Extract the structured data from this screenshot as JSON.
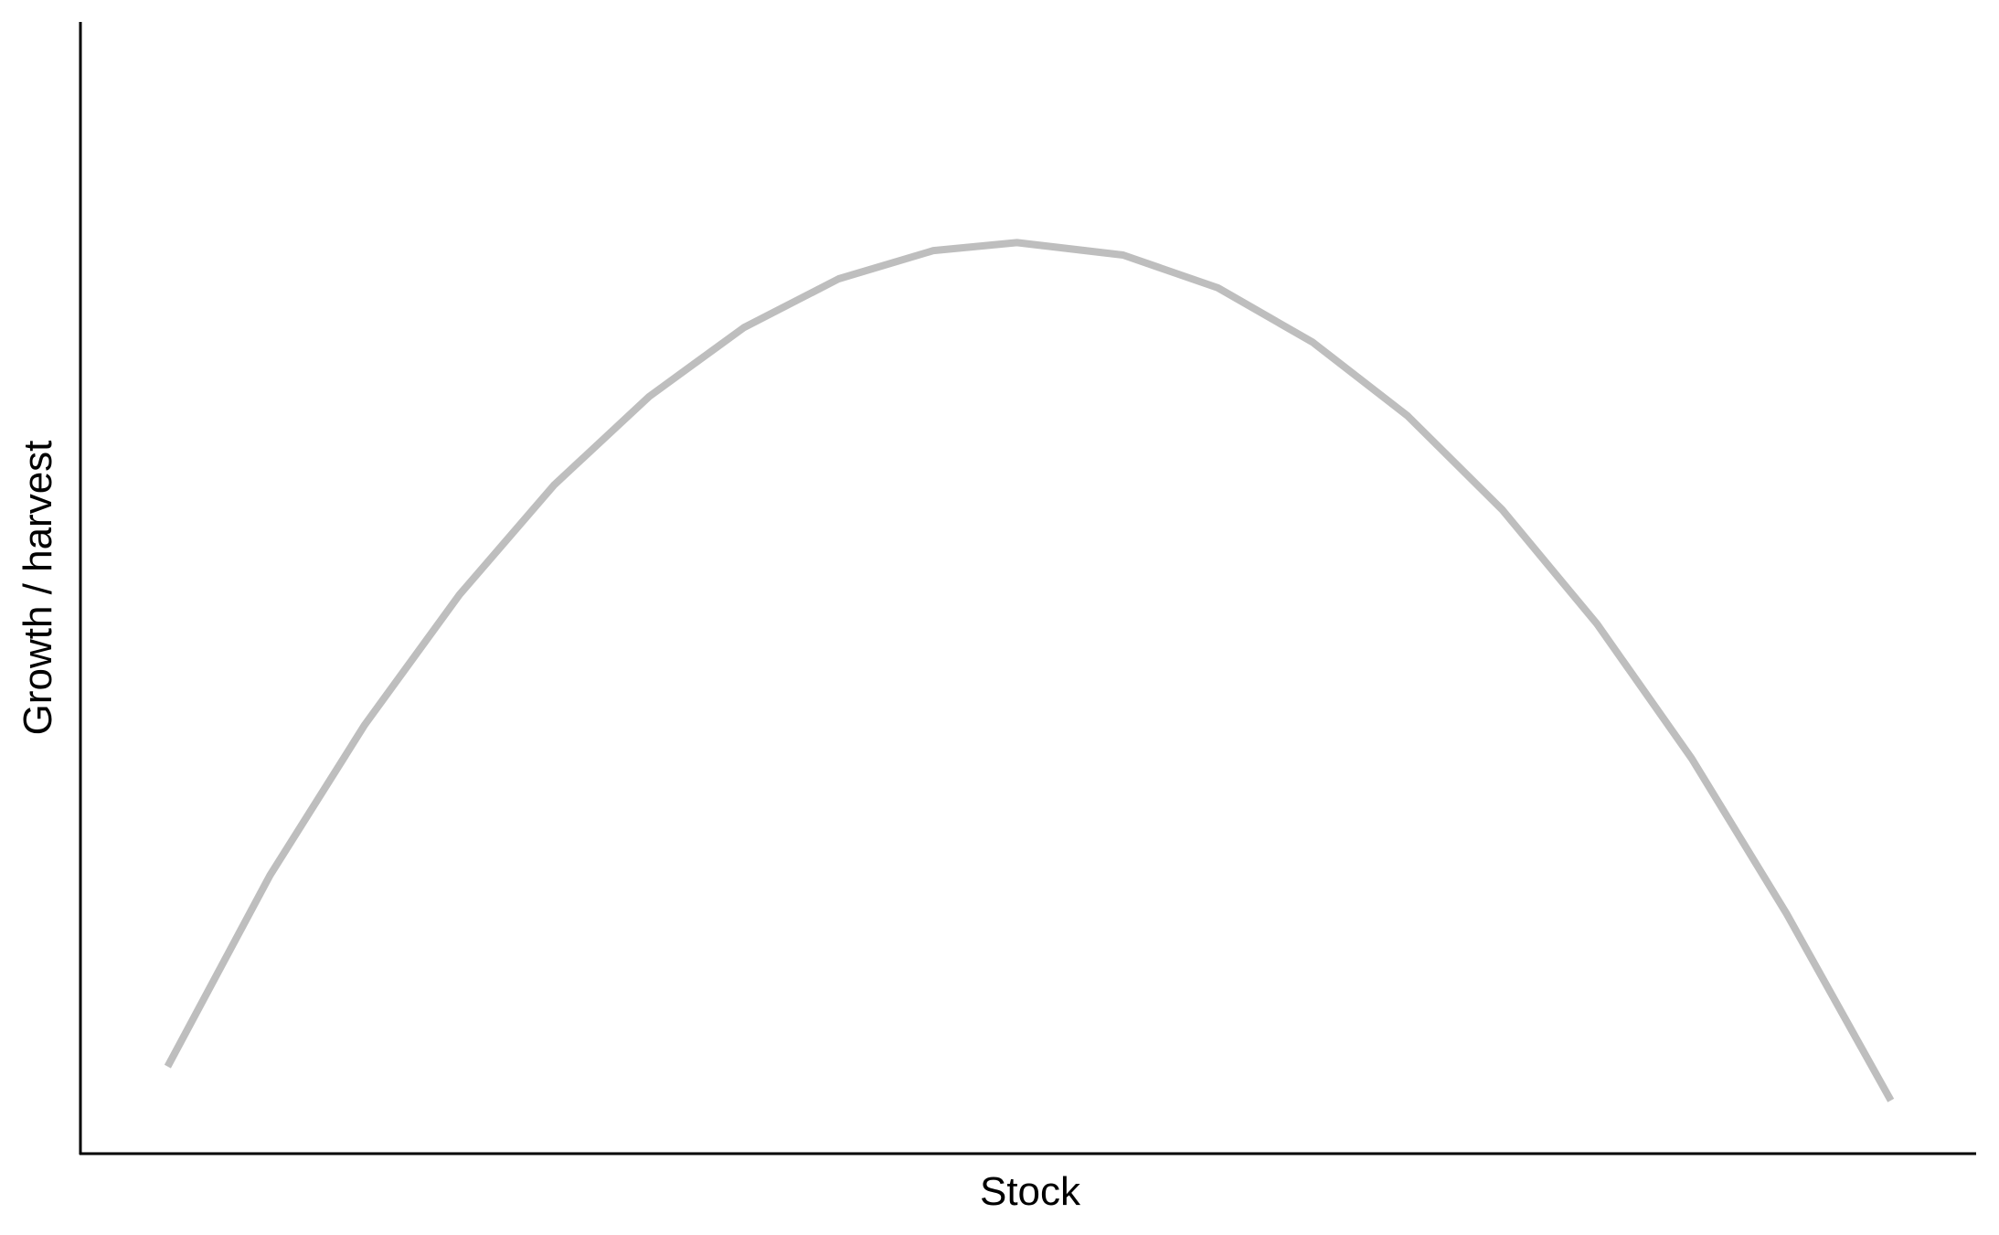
{
  "chart_data": {
    "type": "line",
    "x_label": "Stock",
    "y_label": "Growth / harvest",
    "x": [
      4.6,
      10,
      15,
      20,
      25,
      30,
      35,
      40,
      45,
      49.4,
      55,
      60,
      65,
      70,
      75,
      80,
      85,
      90,
      95.5
    ],
    "series": [
      {
        "color": "#bebebe",
        "values": [
          7.7,
          24.6,
          37.9,
          49.4,
          59.1,
          66.9,
          73.0,
          77.3,
          79.8,
          80.5,
          79.4,
          76.5,
          71.7,
          65.2,
          56.9,
          46.8,
          34.9,
          21.2,
          4.7
        ]
      }
    ],
    "xlim": [
      0,
      100
    ],
    "ylim": [
      0,
      100
    ]
  }
}
